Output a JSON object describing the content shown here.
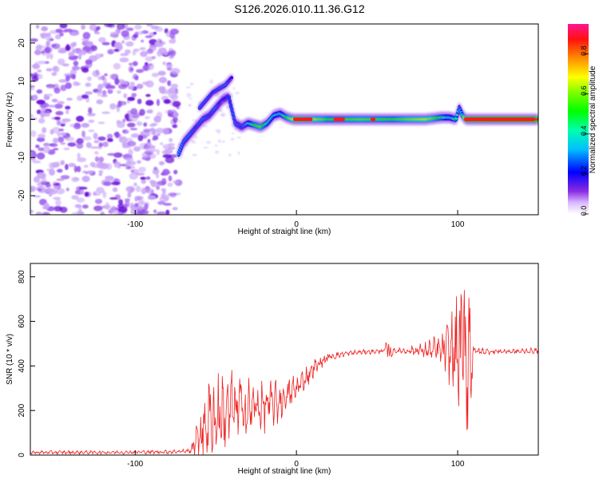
{
  "title": "S126.2026.010.11.36.G12",
  "chart_data": [
    {
      "type": "heatmap",
      "panel": "spectrogram",
      "xlabel": "Height of straight line (km)",
      "ylabel": "Frequency (Hz)",
      "xlim": [
        -165,
        150
      ],
      "ylim": [
        -25,
        25
      ],
      "xticks": [
        -100,
        0,
        100
      ],
      "xtick_labels": [
        "-100",
        "0",
        "100"
      ],
      "yticks": [
        -20,
        -10,
        0,
        10,
        20
      ],
      "ytick_labels": [
        "-20",
        "-10",
        "0",
        "10",
        "20"
      ],
      "colorbar": {
        "label": "Normalized spectral amplitude",
        "range": [
          0.0,
          0.95
        ],
        "ticks": [
          0.0,
          0.2,
          0.4,
          0.6,
          0.8
        ],
        "tick_labels": [
          "0.0",
          "0.2",
          "0.4",
          "0.6",
          "0.8"
        ],
        "colormap": [
          "#ffffff",
          "#8a2be2",
          "#0000ff",
          "#00bfff",
          "#00ff80",
          "#7fff00",
          "#ffff00",
          "#ff8c00",
          "#ff0000",
          "#ff1493"
        ]
      },
      "features": {
        "noise_region_x": [
          -165,
          -73
        ],
        "carrier_track": {
          "x": [
            -73,
            -70,
            -66,
            -62,
            -58,
            -54,
            -50,
            -46,
            -42,
            -38,
            -34,
            -30,
            -26,
            -22,
            -18,
            -14,
            -10,
            -6,
            -2,
            0,
            20,
            40,
            60,
            80,
            90,
            95,
            99,
            101,
            103,
            105,
            120,
            150
          ],
          "freq": [
            -9,
            -6,
            -4,
            -2,
            0,
            1,
            3,
            5,
            6,
            -1,
            -2,
            -1,
            -1.5,
            -2,
            -1,
            1,
            1.5,
            0.5,
            0,
            0,
            0,
            0,
            0,
            0,
            0.5,
            0.5,
            0,
            3,
            1,
            0,
            0,
            0
          ],
          "amp": [
            0.35,
            0.3,
            0.3,
            0.25,
            0.3,
            0.25,
            0.3,
            0.2,
            0.25,
            0.3,
            0.25,
            0.35,
            0.55,
            0.6,
            0.45,
            0.4,
            0.35,
            0.55,
            0.7,
            0.85,
            0.55,
            0.6,
            0.55,
            0.7,
            0.5,
            0.35,
            0.5,
            0.3,
            0.45,
            0.9,
            0.95,
            0.95
          ]
        },
        "branch": {
          "x": [
            -60,
            -52,
            -44,
            -40
          ],
          "freq": [
            3,
            7,
            9,
            11
          ]
        }
      }
    },
    {
      "type": "line",
      "panel": "snr",
      "xlabel": "Height of straight line (km)",
      "ylabel": "SNR (10 * v/v)",
      "xlim": [
        -165,
        150
      ],
      "ylim": [
        0,
        860
      ],
      "xticks": [
        -100,
        0,
        100
      ],
      "xtick_labels": [
        "-100",
        "0",
        "100"
      ],
      "yticks": [
        0,
        200,
        400,
        600,
        800
      ],
      "ytick_labels": [
        "0",
        "200",
        "400",
        "600",
        "800"
      ],
      "color": "#ee2222",
      "series": [
        {
          "name": "SNR",
          "x": [
            -165,
            -120,
            -80,
            -66,
            -60,
            -55,
            -50,
            -45,
            -40,
            -35,
            -30,
            -25,
            -20,
            -15,
            -10,
            -5,
            0,
            5,
            10,
            15,
            20,
            30,
            40,
            50,
            55,
            57,
            58,
            60,
            70,
            80,
            90,
            95,
            100,
            103,
            106,
            108,
            110,
            112,
            120,
            135,
            150
          ],
          "value": [
            12,
            12,
            14,
            18,
            90,
            150,
            170,
            190,
            210,
            215,
            205,
            215,
            220,
            230,
            240,
            270,
            300,
            340,
            385,
            415,
            440,
            455,
            462,
            465,
            470,
            480,
            450,
            468,
            468,
            470,
            470,
            470,
            455,
            470,
            480,
            460,
            465,
            465,
            465,
            465,
            468
          ],
          "spread": [
            8,
            8,
            8,
            10,
            120,
            200,
            220,
            180,
            170,
            160,
            140,
            120,
            110,
            100,
            90,
            80,
            60,
            50,
            40,
            30,
            20,
            12,
            10,
            10,
            20,
            60,
            40,
            12,
            18,
            40,
            70,
            150,
            250,
            380,
            420,
            300,
            40,
            20,
            12,
            12,
            12
          ]
        }
      ]
    }
  ]
}
